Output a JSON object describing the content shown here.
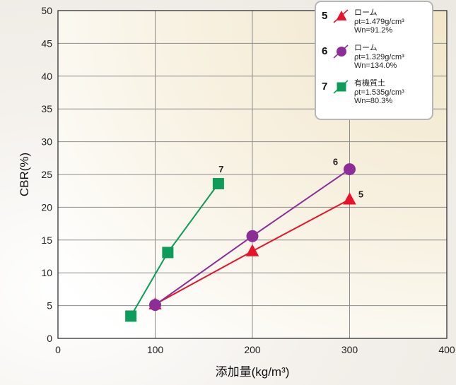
{
  "chart_data": {
    "type": "line",
    "xlabel": "添加量(kg/m³)",
    "ylabel": "CBR(%)",
    "xlim": [
      0,
      400
    ],
    "ylim": [
      0,
      50
    ],
    "x_ticks": [
      "0",
      "100",
      "200",
      "300",
      "400"
    ],
    "y_ticks": [
      "0",
      "5",
      "10",
      "15",
      "20",
      "25",
      "30",
      "35",
      "40",
      "45",
      "50"
    ],
    "grid": true,
    "legend_position": "top-right",
    "series": [
      {
        "id": "5",
        "name": "ローム",
        "legend_lines": [
          "ρt=1.479g/cm³",
          "Wn=91.2%"
        ],
        "marker": "triangle",
        "color": "#e8132b",
        "x": [
          100,
          200,
          300
        ],
        "y": [
          5.2,
          13.3,
          21.2
        ],
        "end_label": "5"
      },
      {
        "id": "6",
        "name": "ローム",
        "legend_lines": [
          "ρt=1.329g/cm³",
          "Wn=134.0%"
        ],
        "marker": "circle",
        "color": "#8b2f96",
        "x": [
          100,
          200,
          300
        ],
        "y": [
          5.1,
          15.6,
          25.8
        ],
        "end_label": "6"
      },
      {
        "id": "7",
        "name": "有機質土",
        "legend_lines": [
          "ρt=1.535g/cm³",
          "Wn=80.3%"
        ],
        "marker": "square",
        "color": "#0e9c5a",
        "x": [
          75,
          113,
          165
        ],
        "y": [
          3.4,
          13.1,
          23.6
        ],
        "end_label": "7"
      }
    ]
  }
}
